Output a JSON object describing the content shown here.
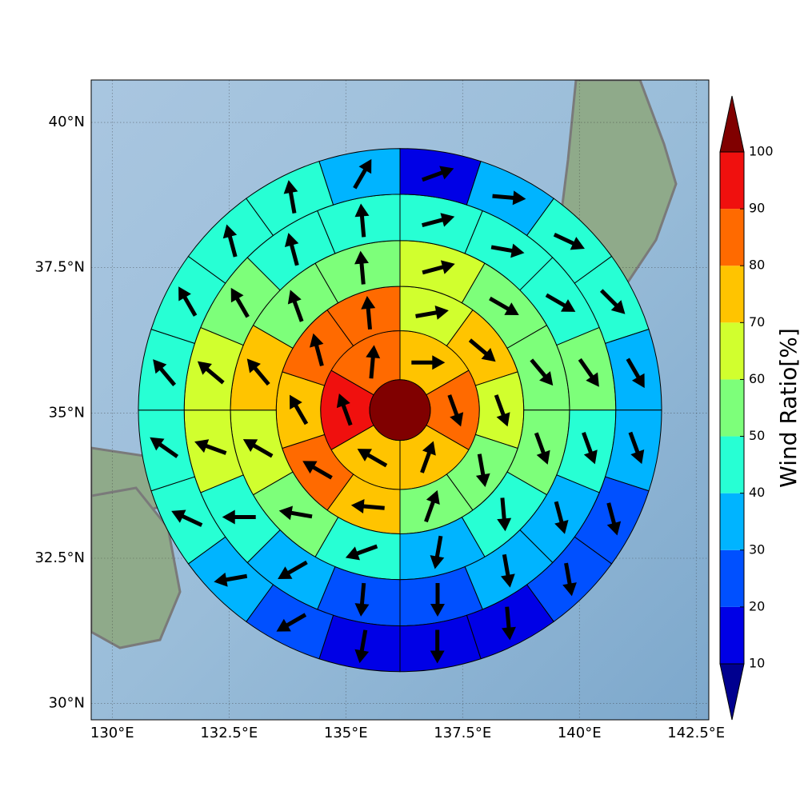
{
  "chart_data": {
    "type": "polar-sector-map",
    "xlim": [
      129.55,
      142.77
    ],
    "ylim": [
      29.72,
      40.73
    ],
    "xticks": [
      {
        "value": 130,
        "label": "130°E"
      },
      {
        "value": 132.5,
        "label": "132.5°E"
      },
      {
        "value": 135,
        "label": "135°E"
      },
      {
        "value": 137.5,
        "label": "137.5°E"
      },
      {
        "value": 140,
        "label": "140°E"
      },
      {
        "value": 142.5,
        "label": "142.5°E"
      }
    ],
    "yticks": [
      {
        "value": 30,
        "label": "30°N"
      },
      {
        "value": 32.5,
        "label": "32.5°N"
      },
      {
        "value": 35,
        "label": "35°N"
      },
      {
        "value": 37.5,
        "label": "37.5°N"
      },
      {
        "value": 40,
        "label": "40°N"
      }
    ],
    "grid": true,
    "center": [
      136.16,
      35.05
    ],
    "center_value": 100,
    "ring_edges": [
      0.65,
      1.7,
      2.65,
      3.63,
      4.62,
      5.6
    ],
    "rings": [
      {
        "values": [
          75,
          85,
          75,
          75,
          95,
          85
        ],
        "arrows": [
          90,
          160,
          20,
          300,
          340,
          5
        ]
      },
      {
        "values": [
          65,
          75,
          65,
          55,
          55,
          75,
          85,
          75,
          85,
          85
        ],
        "arrows": [
          80,
          130,
          160,
          170,
          20,
          275,
          300,
          330,
          345,
          355
        ]
      },
      {
        "values": [
          65,
          55,
          55,
          55,
          45,
          35,
          45,
          55,
          65,
          75,
          55,
          55
        ],
        "arrows": [
          75,
          120,
          140,
          160,
          175,
          190,
          250,
          280,
          300,
          320,
          340,
          355
        ]
      },
      {
        "values": [
          45,
          45,
          45,
          55,
          45,
          35,
          35,
          25,
          25,
          35,
          45,
          65,
          65,
          55,
          45,
          45
        ],
        "arrows": [
          75,
          100,
          120,
          145,
          160,
          165,
          170,
          180,
          185,
          240,
          270,
          290,
          310,
          330,
          345,
          355
        ]
      },
      {
        "values": [
          15,
          35,
          45,
          45,
          35,
          35,
          25,
          25,
          15,
          15,
          15,
          25,
          35,
          45,
          45,
          45,
          45,
          45,
          45,
          35
        ],
        "arrows": [
          70,
          95,
          115,
          135,
          150,
          160,
          165,
          170,
          175,
          180,
          190,
          240,
          260,
          295,
          305,
          320,
          330,
          345,
          350,
          30
        ]
      }
    ],
    "colorbar": {
      "label": "Wind Ratio[%]",
      "bounds": [
        10,
        20,
        30,
        40,
        50,
        60,
        70,
        80,
        90,
        100
      ],
      "colors": [
        "#0000e6",
        "#0050ff",
        "#00b4ff",
        "#27ffd4",
        "#7dff7a",
        "#d1ff2e",
        "#ffc400",
        "#ff6a00",
        "#f0100e"
      ],
      "under": "#00008f",
      "over": "#800000"
    }
  }
}
